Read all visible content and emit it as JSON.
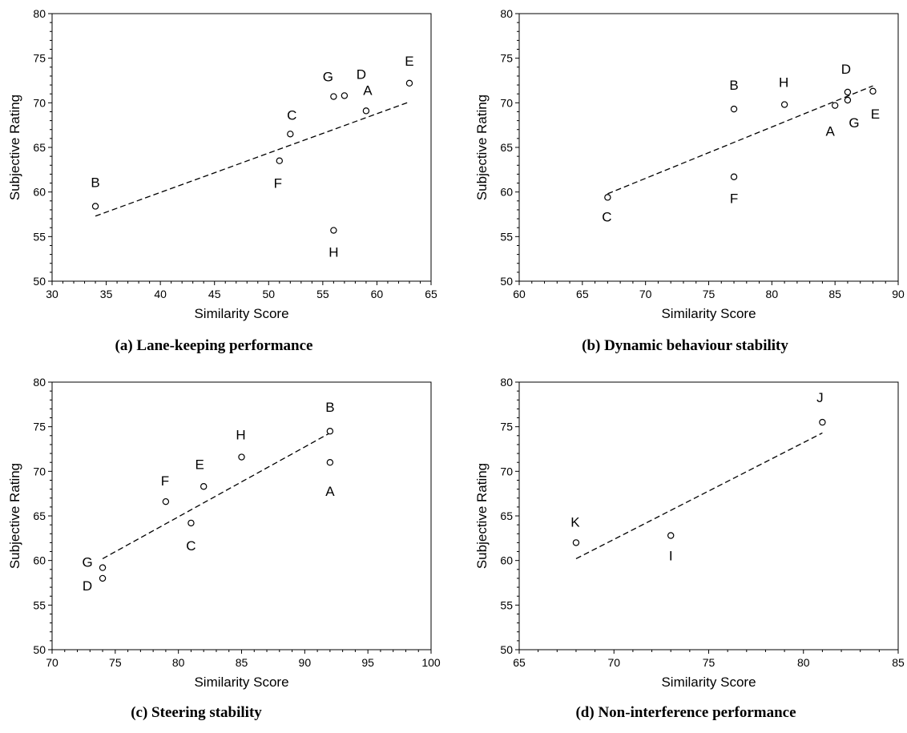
{
  "chart_data": [
    {
      "type": "scatter",
      "caption": "(a) Lane-keeping performance",
      "xlabel": "Similarity Score",
      "ylabel": "Subjective Rating",
      "xlim": [
        30,
        65
      ],
      "ylim": [
        50,
        80
      ],
      "xticks": [
        30,
        35,
        40,
        45,
        50,
        55,
        60,
        65
      ],
      "yticks": [
        50,
        55,
        60,
        65,
        70,
        75,
        80
      ],
      "points": [
        {
          "label": "A",
          "x": 59,
          "y": 69.1
        },
        {
          "label": "B",
          "x": 34,
          "y": 58.4
        },
        {
          "label": "C",
          "x": 52,
          "y": 66.5
        },
        {
          "label": "D",
          "x": 57,
          "y": 70.8
        },
        {
          "label": "E",
          "x": 63,
          "y": 72.2
        },
        {
          "label": "F",
          "x": 51,
          "y": 63.5
        },
        {
          "label": "G",
          "x": 56,
          "y": 70.7
        },
        {
          "label": "H",
          "x": 56,
          "y": 55.7
        }
      ],
      "trendline": {
        "style": "dashed",
        "x": [
          34,
          63
        ],
        "y": [
          57.3,
          70.1
        ]
      }
    },
    {
      "type": "scatter",
      "caption": "(b) Dynamic behaviour stability",
      "xlabel": "Similarity Score",
      "ylabel": "Subjective Rating",
      "xlim": [
        60,
        90
      ],
      "ylim": [
        50,
        80
      ],
      "xticks": [
        60,
        65,
        70,
        75,
        80,
        85,
        90
      ],
      "yticks": [
        50,
        55,
        60,
        65,
        70,
        75,
        80
      ],
      "points": [
        {
          "label": "A",
          "x": 85,
          "y": 69.7
        },
        {
          "label": "B",
          "x": 77,
          "y": 69.3
        },
        {
          "label": "C",
          "x": 67,
          "y": 59.4
        },
        {
          "label": "D",
          "x": 86,
          "y": 71.2
        },
        {
          "label": "E",
          "x": 88,
          "y": 71.3
        },
        {
          "label": "F",
          "x": 77,
          "y": 61.7
        },
        {
          "label": "G",
          "x": 86,
          "y": 70.3
        },
        {
          "label": "H",
          "x": 81,
          "y": 69.8
        }
      ],
      "trendline": {
        "style": "dashed",
        "x": [
          67,
          88
        ],
        "y": [
          59.8,
          71.9
        ]
      }
    },
    {
      "type": "scatter",
      "caption": "(c) Steering stability",
      "xlabel": "Similarity Score",
      "ylabel": "Subjective Rating",
      "xlim": [
        70,
        100
      ],
      "ylim": [
        50,
        80
      ],
      "xticks": [
        70,
        75,
        80,
        85,
        90,
        95,
        100
      ],
      "yticks": [
        50,
        55,
        60,
        65,
        70,
        75,
        80
      ],
      "points": [
        {
          "label": "A",
          "x": 92,
          "y": 71.0
        },
        {
          "label": "B",
          "x": 92,
          "y": 74.5
        },
        {
          "label": "C",
          "x": 81,
          "y": 64.2
        },
        {
          "label": "D",
          "x": 74,
          "y": 58.0
        },
        {
          "label": "E",
          "x": 82,
          "y": 68.3
        },
        {
          "label": "F",
          "x": 79,
          "y": 66.6
        },
        {
          "label": "G",
          "x": 74,
          "y": 59.2
        },
        {
          "label": "H",
          "x": 85,
          "y": 71.6
        }
      ],
      "trendline": {
        "style": "dashed",
        "x": [
          74,
          92
        ],
        "y": [
          60.2,
          74.3
        ]
      }
    },
    {
      "type": "scatter",
      "caption": "(d) Non-interference performance",
      "xlabel": "Similarity Score",
      "ylabel": "Subjective Rating",
      "xlim": [
        65,
        85
      ],
      "ylim": [
        50,
        80
      ],
      "xticks": [
        65,
        70,
        75,
        80,
        85
      ],
      "yticks": [
        50,
        55,
        60,
        65,
        70,
        75,
        80
      ],
      "points": [
        {
          "label": "I",
          "x": 73,
          "y": 62.8
        },
        {
          "label": "J",
          "x": 81,
          "y": 75.5
        },
        {
          "label": "K",
          "x": 68,
          "y": 62.0
        }
      ],
      "trendline": {
        "style": "dashed",
        "x": [
          68,
          81
        ],
        "y": [
          60.2,
          74.3
        ]
      }
    }
  ]
}
